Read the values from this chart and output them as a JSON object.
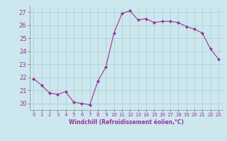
{
  "x": [
    0,
    1,
    2,
    3,
    4,
    5,
    6,
    7,
    8,
    9,
    10,
    11,
    12,
    13,
    14,
    15,
    16,
    17,
    18,
    19,
    20,
    21,
    22,
    23
  ],
  "y": [
    21.9,
    21.4,
    20.8,
    20.7,
    20.9,
    20.1,
    20.0,
    19.9,
    21.7,
    22.8,
    25.4,
    26.9,
    27.1,
    26.4,
    26.5,
    26.2,
    26.3,
    26.3,
    26.2,
    25.9,
    25.7,
    25.4,
    24.2,
    23.4
  ],
  "line_color": "#993399",
  "marker": "D",
  "marker_size": 2.0,
  "bg_color": "#cce8ee",
  "grid_color": "#aacccc",
  "xlabel": "Windchill (Refroidissement éolien,°C)",
  "xlabel_color": "#993399",
  "tick_color": "#993399",
  "ylim": [
    19.5,
    27.5
  ],
  "xlim": [
    -0.5,
    23.5
  ],
  "yticks": [
    20,
    21,
    22,
    23,
    24,
    25,
    26,
    27
  ],
  "xticks": [
    0,
    1,
    2,
    3,
    4,
    5,
    6,
    7,
    8,
    9,
    10,
    11,
    12,
    13,
    14,
    15,
    16,
    17,
    18,
    19,
    20,
    21,
    22,
    23
  ],
  "figsize": [
    3.2,
    2.0
  ],
  "dpi": 100
}
